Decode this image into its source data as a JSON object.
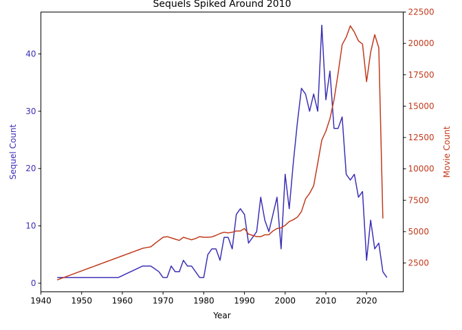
{
  "chart_data": {
    "type": "line",
    "title": "Sequels Spiked Around 2010",
    "xlabel": "Year",
    "ylabel_left": "Sequel Count",
    "ylabel_right": "Movie Count",
    "xlim": [
      1940,
      2029
    ],
    "ylim_left": [
      -1.5,
      47.3
    ],
    "ylim_right": [
      200,
      22500
    ],
    "x_ticks": [
      1940,
      1950,
      1960,
      1970,
      1980,
      1990,
      2000,
      2010,
      2020
    ],
    "y_left_ticks": [
      0,
      10,
      20,
      30,
      40
    ],
    "y_right_ticks": [
      2500,
      5000,
      7500,
      10000,
      12500,
      15000,
      17500,
      20000,
      22500
    ],
    "grid": false,
    "left_color": "#3a2fb5",
    "right_color": "#c0391b",
    "series": [
      {
        "name": "Sequel Count",
        "axis": "left",
        "color": "#3a2fb5",
        "x": [
          1944,
          1945,
          1946,
          1947,
          1948,
          1949,
          1950,
          1951,
          1952,
          1953,
          1954,
          1955,
          1956,
          1957,
          1958,
          1959,
          1960,
          1961,
          1962,
          1963,
          1964,
          1965,
          1966,
          1967,
          1968,
          1969,
          1970,
          1971,
          1972,
          1973,
          1974,
          1975,
          1976,
          1977,
          1978,
          1979,
          1980,
          1981,
          1982,
          1983,
          1984,
          1985,
          1986,
          1987,
          1988,
          1989,
          1990,
          1991,
          1992,
          1993,
          1994,
          1995,
          1996,
          1997,
          1998,
          1999,
          2000,
          2001,
          2002,
          2003,
          2004,
          2005,
          2006,
          2007,
          2008,
          2009,
          2010,
          2011,
          2012,
          2013,
          2014,
          2015,
          2016,
          2017,
          2018,
          2019,
          2020,
          2021,
          2022,
          2023,
          2024,
          2025
        ],
        "values": [
          1,
          1,
          1,
          1,
          1,
          1,
          1,
          1,
          1,
          1,
          1,
          1,
          1,
          1,
          1,
          1,
          1.33,
          1.67,
          2,
          2.33,
          2.67,
          3,
          3,
          3,
          2.5,
          2,
          1,
          1,
          3,
          2,
          2,
          4,
          3,
          3,
          2,
          1,
          1,
          5,
          6,
          6,
          4,
          8,
          8,
          6,
          12,
          13,
          12,
          7,
          8,
          9,
          15,
          11,
          9,
          12,
          15,
          6,
          19,
          13,
          21,
          28,
          34,
          33,
          30,
          33,
          30,
          45,
          32,
          37,
          27,
          27,
          29,
          19,
          18,
          19,
          15,
          16,
          4,
          11,
          6,
          7,
          2,
          1
        ]
      },
      {
        "name": "Movie Count",
        "axis": "right",
        "color": "#c0391b",
        "x": [
          1944,
          1945,
          1946,
          1947,
          1948,
          1949,
          1950,
          1951,
          1952,
          1953,
          1954,
          1955,
          1956,
          1957,
          1958,
          1959,
          1960,
          1961,
          1962,
          1963,
          1964,
          1965,
          1966,
          1967,
          1968,
          1969,
          1970,
          1971,
          1972,
          1973,
          1974,
          1975,
          1976,
          1977,
          1978,
          1979,
          1980,
          1981,
          1982,
          1983,
          1984,
          1985,
          1986,
          1987,
          1988,
          1989,
          1990,
          1991,
          1992,
          1993,
          1994,
          1995,
          1996,
          1997,
          1998,
          1999,
          2000,
          2001,
          2002,
          2003,
          2004,
          2005,
          2006,
          2007,
          2008,
          2009,
          2010,
          2011,
          2012,
          2013,
          2014,
          2015,
          2016,
          2017,
          2018,
          2019,
          2020,
          2021,
          2022,
          2023,
          2024
        ],
        "values": [
          1150,
          1270,
          1390,
          1510,
          1630,
          1750,
          1870,
          1990,
          2110,
          2230,
          2350,
          2470,
          2590,
          2710,
          2830,
          2950,
          3070,
          3190,
          3310,
          3430,
          3550,
          3670,
          3730,
          3790,
          4050,
          4300,
          4550,
          4600,
          4500,
          4400,
          4300,
          4550,
          4450,
          4350,
          4450,
          4600,
          4550,
          4550,
          4580,
          4700,
          4850,
          4950,
          4900,
          4950,
          5050,
          5050,
          5250,
          4800,
          4700,
          4600,
          4600,
          4750,
          4750,
          5050,
          5250,
          5300,
          5500,
          5800,
          5950,
          6150,
          6600,
          7600,
          8050,
          8650,
          10450,
          12300,
          13000,
          14000,
          15500,
          17600,
          19900,
          20500,
          21400,
          20900,
          20200,
          19950,
          16950,
          19300,
          20700,
          19650,
          6050
        ]
      }
    ]
  }
}
